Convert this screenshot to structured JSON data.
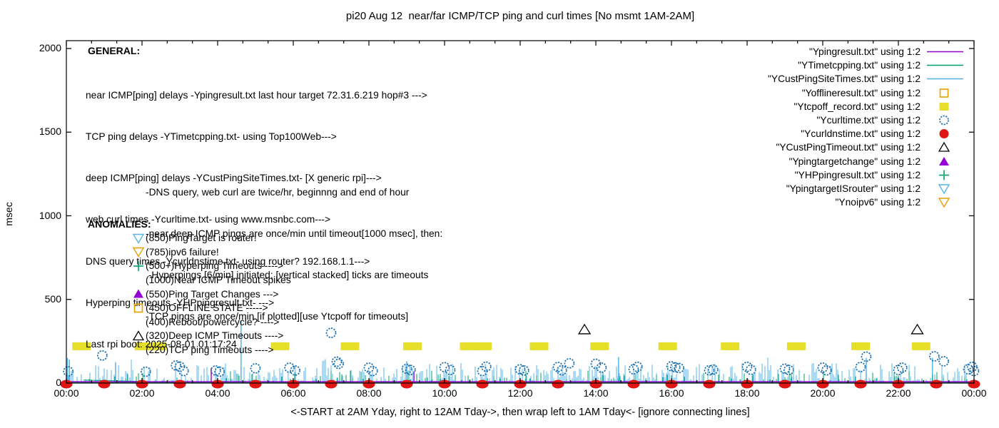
{
  "title": "pi20 Aug 12  near/far ICMP/TCP ping and curl times [No msmt 1AM-2AM]",
  "y_axis": {
    "label": "msec",
    "tick_labels": [
      "0",
      "500",
      "1000",
      "1500",
      "2000"
    ],
    "tick_values": [
      0,
      500,
      1000,
      1500,
      2000
    ]
  },
  "x_axis": {
    "label": "<-START at 2AM Yday, right to 12AM Tday->, then wrap left to 1AM Tday<- [ignore connecting lines]",
    "tick_labels": [
      "00:00",
      "02:00",
      "04:00",
      "06:00",
      "08:00",
      "10:00",
      "12:00",
      "14:00",
      "16:00",
      "18:00",
      "20:00",
      "22:00",
      "00:00"
    ],
    "tick_hours": [
      0,
      2,
      4,
      6,
      8,
      10,
      12,
      14,
      16,
      18,
      20,
      22,
      24
    ]
  },
  "annotations": {
    "general": {
      "heading": "GENERAL:",
      "lines": [
        "near ICMP[ping] delays -Ypingresult.txt last hour target 72.31.6.219 hop#3 --->",
        "TCP ping delays -YTimetcpping.txt- using Top100Web--->",
        "deep ICMP[ping] delays -YCustPingSiteTimes.txt- [X generic rpi]--->",
        "web curl times -Ycurltime.txt- using www.msnbc.com--->",
        "DNS query times -Ycurldnstime.txt- using router? 192.168.1.1--->",
        "Hyperping timeouts -YHPpingresult.txt- --->",
        "Last rpi boot: 2025-08-01 01:17:24"
      ],
      "sub_lines": [
        "-DNS query, web curl are twice/hr, beginnng and end of hour",
        "-near,deep ICMP pings are once/min until timeout[1000 msec], then:",
        " -Hyperpings [6/min] initiated; [vertical stacked] ticks are timeouts",
        "-TCP pings are once/min [if plotted][use Ytcpoff for timeouts]"
      ]
    },
    "anomalies": {
      "heading": "ANOMALIES:",
      "items": [
        {
          "marker": "triangle-down-open",
          "color": "#56b4e9",
          "text": "(850)PingTarget is router!"
        },
        {
          "marker": "triangle-down-open",
          "color": "#e69f00",
          "text": "(785)ipv6 failure!"
        },
        {
          "marker": "plus",
          "color": "#00a06a",
          "text": "(500+)Hyperping Timeouts ---->"
        },
        {
          "marker": "none",
          "color": "#000000",
          "text": "(1000)Near ICMP Timeout spikes"
        },
        {
          "marker": "triangle-filled",
          "color": "#9400d3",
          "text": "(550)Ping Target Changes --->"
        },
        {
          "marker": "square-open",
          "color": "#e69f00",
          "text": "(450)OFFLINE STATE ----->"
        },
        {
          "marker": "none",
          "color": "#000000",
          "text": "(400)Reboot/powercycle? ---->"
        },
        {
          "marker": "triangle-open",
          "color": "#000000",
          "text": "(320)Deep ICMP Timeouts ---->"
        },
        {
          "marker": "none",
          "color": "#000000",
          "text": "(220)TCP ping Timeouts ---->"
        }
      ]
    }
  },
  "legend": {
    "items": [
      {
        "label": "\"Ypingresult.txt\" using 1:2",
        "marker": "line",
        "color": "#9400d3"
      },
      {
        "label": "\"YTimetcpping.txt\" using 1:2",
        "marker": "line",
        "color": "#00a06a"
      },
      {
        "label": "\"YCustPingSiteTimes.txt\" using 1:2",
        "marker": "line",
        "color": "#56b4e9"
      },
      {
        "label": "\"Yofflineresult.txt\" using 1:2",
        "marker": "square-open",
        "color": "#e69f00"
      },
      {
        "label": "\"Ytcpoff_record.txt\" using 1:2",
        "marker": "square-filled",
        "color": "#e6df2a"
      },
      {
        "label": "\"Ycurltime.txt\" using 1:2",
        "marker": "circle-open",
        "color": "#1b6fae"
      },
      {
        "label": "\"Ycurldnstime.txt\" using 1:2",
        "marker": "circle-filled",
        "color": "#e01515"
      },
      {
        "label": "\"YCustPingTimeout.txt\" using 1:2",
        "marker": "triangle-open",
        "color": "#000000"
      },
      {
        "label": "\"Ypingtargetchange\" using 1:2",
        "marker": "triangle-filled",
        "color": "#9400d3"
      },
      {
        "label": "\"YHPpingresult.txt\" using 1:2",
        "marker": "plus",
        "color": "#00a06a"
      },
      {
        "label": "\"YpingtargetISrouter\" using 1:2",
        "marker": "triangle-down-open",
        "color": "#56b4e9"
      },
      {
        "label": "\"Ynoipv6\" using 1:2",
        "marker": "triangle-down-open",
        "color": "#e69f00"
      }
    ]
  },
  "chart_data": {
    "type": "mixed line+scatter (gnuplot)",
    "x_unit": "hours (00:00-24:00)",
    "x_range": [
      0,
      24
    ],
    "y_unit": "msec",
    "y_range": [
      0,
      2050
    ],
    "grid": false,
    "noise": {
      "seed": 987654,
      "cust_typical_max_msec": 120,
      "tcp_max_msec": 75
    },
    "series": [
      {
        "name": "Ypingresult.txt",
        "style": "line",
        "color": "#9400d3",
        "baseline_msec": 8,
        "spikes": [
          [
            3.83,
            90
          ],
          [
            9.19,
            70
          ]
        ]
      },
      {
        "name": "YTimetcpping.txt",
        "style": "grass-line",
        "color": "#00a06a",
        "baseline_msec": 3,
        "connect_segment": [
          [
            0.45,
            18
          ],
          [
            2.3,
            8
          ]
        ]
      },
      {
        "name": "YCustPingSiteTimes.txt",
        "style": "grass-line",
        "color": "#56b4e9",
        "baseline_msec": 2,
        "spikes": [
          [
            0.03,
            150
          ],
          [
            0.08,
            140
          ],
          [
            1.3,
            125
          ],
          [
            4.62,
            370
          ],
          [
            9.0,
            130
          ],
          [
            14.6,
            155
          ],
          [
            21.15,
            150
          ],
          [
            22.9,
            150
          ]
        ]
      },
      {
        "name": "Yofflineresult.txt",
        "style": "points",
        "marker": "square-open",
        "color": "#e69f00",
        "points": []
      },
      {
        "name": "Ytcpoff_record.txt",
        "style": "points",
        "marker": "square-filled",
        "color": "#e6df2a",
        "value_msec": 220,
        "hours": [
          0.4,
          2.05,
          2.4,
          5.65,
          7.5,
          9.15,
          10.65,
          11.0,
          12.5,
          14.1,
          15.9,
          17.55,
          19.3,
          21.0,
          22.6
        ]
      },
      {
        "name": "Ycurltime.txt",
        "style": "points",
        "marker": "circle-open",
        "color": "#1b6fae",
        "points": [
          [
            0.05,
            70
          ],
          [
            0.95,
            165
          ],
          [
            2.1,
            68
          ],
          [
            2.9,
            105
          ],
          [
            3.0,
            98
          ],
          [
            3.1,
            72
          ],
          [
            3.95,
            75
          ],
          [
            4.05,
            68
          ],
          [
            5.0,
            88
          ],
          [
            5.9,
            92
          ],
          [
            6.05,
            75
          ],
          [
            7.0,
            300
          ],
          [
            7.15,
            128
          ],
          [
            7.2,
            115
          ],
          [
            8.0,
            92
          ],
          [
            8.1,
            72
          ],
          [
            9.0,
            85
          ],
          [
            9.1,
            78
          ],
          [
            10.0,
            95
          ],
          [
            10.15,
            78
          ],
          [
            11.0,
            72
          ],
          [
            11.1,
            98
          ],
          [
            12.0,
            82
          ],
          [
            12.1,
            75
          ],
          [
            13.0,
            96
          ],
          [
            13.1,
            76
          ],
          [
            13.3,
            118
          ],
          [
            14.0,
            115
          ],
          [
            14.15,
            92
          ],
          [
            15.0,
            82
          ],
          [
            15.1,
            97
          ],
          [
            16.0,
            100
          ],
          [
            16.1,
            94
          ],
          [
            16.2,
            90
          ],
          [
            17.0,
            76
          ],
          [
            17.1,
            80
          ],
          [
            18.0,
            97
          ],
          [
            18.1,
            80
          ],
          [
            19.0,
            86
          ],
          [
            19.1,
            78
          ],
          [
            20.0,
            92
          ],
          [
            20.1,
            76
          ],
          [
            21.0,
            96
          ],
          [
            21.15,
            158
          ],
          [
            22.0,
            78
          ],
          [
            22.1,
            92
          ],
          [
            22.95,
            160
          ],
          [
            23.2,
            130
          ],
          [
            23.85,
            82
          ],
          [
            23.95,
            97
          ],
          [
            24.0,
            72
          ]
        ]
      },
      {
        "name": "Ycurldnstime.txt",
        "style": "points",
        "marker": "circle-filled",
        "color": "#e01515",
        "value_msec": 0,
        "hours": [
          0,
          1,
          2,
          3,
          4,
          5,
          6,
          7,
          8,
          9,
          10,
          11,
          12,
          13,
          14,
          15,
          16,
          17,
          18,
          19,
          20,
          21,
          22,
          23,
          24
        ]
      },
      {
        "name": "YCustPingTimeout.txt",
        "style": "points",
        "marker": "triangle-open",
        "color": "#000000",
        "points": [
          [
            13.7,
            320
          ],
          [
            22.5,
            320
          ]
        ]
      },
      {
        "name": "Ypingtargetchange",
        "style": "points",
        "marker": "triangle-filled",
        "color": "#9400d3",
        "points": []
      },
      {
        "name": "YHPpingresult.txt",
        "style": "points",
        "marker": "plus",
        "color": "#00a06a",
        "points": []
      },
      {
        "name": "YpingtargetISrouter",
        "style": "points",
        "marker": "triangle-down-open",
        "color": "#56b4e9",
        "points": []
      },
      {
        "name": "Ynoipv6",
        "style": "points",
        "marker": "triangle-down-open",
        "color": "#e69f00",
        "points": []
      }
    ]
  }
}
